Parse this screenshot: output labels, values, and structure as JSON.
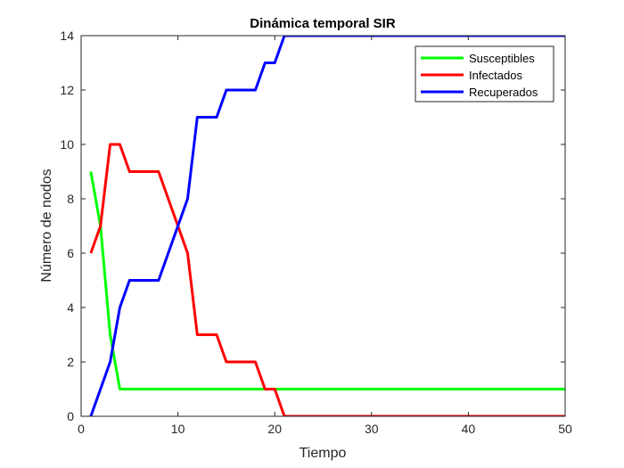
{
  "chart_data": {
    "type": "line",
    "title": "Dinámica temporal SIR",
    "xlabel": "Tiempo",
    "ylabel": "Número de nodos",
    "xlim": [
      0,
      50
    ],
    "ylim": [
      0,
      14
    ],
    "xticks": [
      0,
      10,
      20,
      30,
      40,
      50
    ],
    "yticks": [
      0,
      2,
      4,
      6,
      8,
      10,
      12,
      14
    ],
    "grid": false,
    "legend_position": "top-right",
    "x": [
      1,
      2,
      3,
      4,
      5,
      6,
      7,
      8,
      9,
      10,
      11,
      12,
      13,
      14,
      15,
      16,
      17,
      18,
      19,
      20,
      21,
      22,
      23,
      24,
      25,
      26,
      27,
      28,
      29,
      30,
      31,
      32,
      33,
      34,
      35,
      36,
      37,
      38,
      39,
      40,
      41,
      42,
      43,
      44,
      45,
      46,
      47,
      48,
      49,
      50
    ],
    "series": [
      {
        "name": "Susceptibles",
        "color": "#00ff00",
        "values": [
          9,
          7,
          3,
          1,
          1,
          1,
          1,
          1,
          1,
          1,
          1,
          1,
          1,
          1,
          1,
          1,
          1,
          1,
          1,
          1,
          1,
          1,
          1,
          1,
          1,
          1,
          1,
          1,
          1,
          1,
          1,
          1,
          1,
          1,
          1,
          1,
          1,
          1,
          1,
          1,
          1,
          1,
          1,
          1,
          1,
          1,
          1,
          1,
          1,
          1
        ]
      },
      {
        "name": "Infectados",
        "color": "#ff0000",
        "values": [
          6,
          7,
          10,
          10,
          9,
          9,
          9,
          9,
          8,
          7,
          6,
          3,
          3,
          3,
          2,
          2,
          2,
          2,
          1,
          1,
          0,
          0,
          0,
          0,
          0,
          0,
          0,
          0,
          0,
          0,
          0,
          0,
          0,
          0,
          0,
          0,
          0,
          0,
          0,
          0,
          0,
          0,
          0,
          0,
          0,
          0,
          0,
          0,
          0,
          0
        ]
      },
      {
        "name": "Recuperados",
        "color": "#0000ff",
        "values": [
          0,
          1,
          2,
          4,
          5,
          5,
          5,
          5,
          6,
          7,
          8,
          11,
          11,
          11,
          12,
          12,
          12,
          12,
          13,
          13,
          14,
          14,
          14,
          14,
          14,
          14,
          14,
          14,
          14,
          14,
          14,
          14,
          14,
          14,
          14,
          14,
          14,
          14,
          14,
          14,
          14,
          14,
          14,
          14,
          14,
          14,
          14,
          14,
          14,
          14
        ]
      }
    ]
  }
}
